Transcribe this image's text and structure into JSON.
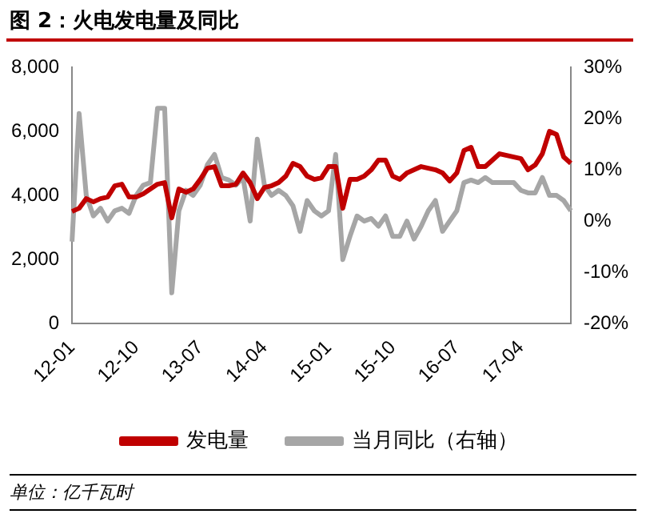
{
  "chart_data": {
    "type": "line",
    "title": "图 2：火电发电量及同比",
    "categories": [
      "12-01",
      null,
      null,
      null,
      null,
      null,
      null,
      null,
      null,
      "12-10",
      null,
      null,
      null,
      null,
      null,
      null,
      null,
      null,
      "13-07",
      null,
      null,
      null,
      null,
      null,
      null,
      null,
      null,
      "14-04",
      null,
      null,
      null,
      null,
      null,
      null,
      null,
      null,
      "15-01",
      null,
      null,
      null,
      null,
      null,
      null,
      null,
      null,
      "15-10",
      null,
      null,
      null,
      null,
      null,
      null,
      null,
      null,
      "16-07",
      null,
      null,
      null,
      null,
      null,
      null,
      null,
      null,
      "17-04",
      null,
      null,
      null,
      null,
      null,
      null,
      null
    ],
    "series": [
      {
        "name": "发电量",
        "color": "#c00000",
        "values": [
          3500,
          3600,
          3900,
          3800,
          3900,
          3950,
          4300,
          4350,
          3950,
          3950,
          4050,
          4200,
          4350,
          4400,
          3300,
          4200,
          4100,
          4200,
          4500,
          4850,
          4900,
          4300,
          4300,
          4350,
          4700,
          4400,
          3900,
          4250,
          4300,
          4400,
          4600,
          5000,
          4900,
          4600,
          4500,
          4550,
          4900,
          4900,
          3600,
          4500,
          4500,
          4600,
          4800,
          5100,
          5100,
          4600,
          4500,
          4700,
          4800,
          4900,
          4850,
          4800,
          4700,
          4450,
          4700,
          5400,
          5500,
          4900,
          4900,
          5100,
          5300,
          5250,
          5200,
          5150,
          4800,
          4950,
          5300,
          6000,
          5900,
          5200,
          5000
        ]
      },
      {
        "name": "当月同比（右轴）",
        "color": "#a6a6a6",
        "axis": "y2",
        "values": [
          -4,
          21,
          5,
          1,
          2.5,
          0,
          2,
          2.5,
          1.5,
          5,
          7,
          7.5,
          22,
          22,
          -14,
          2,
          6,
          5,
          7,
          11,
          13,
          8.5,
          8,
          7,
          8.5,
          0,
          16,
          7,
          5,
          6,
          5,
          3,
          -2,
          4,
          2,
          1,
          2,
          13,
          -7.5,
          -3,
          1,
          0,
          0.5,
          -1,
          1,
          -3,
          -3,
          0,
          -3.5,
          -1,
          2,
          4,
          -2,
          0,
          2,
          7.5,
          8,
          7.5,
          8.5,
          7.5,
          7.5,
          7.5,
          7.5,
          6,
          5.5,
          5.5,
          8.5,
          5,
          5,
          4,
          2
        ]
      }
    ],
    "ylim": [
      0,
      8000
    ],
    "yticks": [
      0,
      {
        "value": 2000,
        "label": "2,000"
      },
      {
        "value": 4000,
        "label": "4,000"
      },
      {
        "value": 6000,
        "label": "6,000"
      },
      {
        "value": 8000,
        "label": "8,000"
      }
    ],
    "y2lim": [
      -20,
      30
    ],
    "y2ticks": [
      {
        "value": -20,
        "label": "-20%"
      },
      {
        "value": -10,
        "label": "-10%"
      },
      {
        "value": 0,
        "label": "0%"
      },
      {
        "value": 10,
        "label": "10%"
      },
      {
        "value": 20,
        "label": "20%"
      },
      {
        "value": 30,
        "label": "30%"
      }
    ],
    "grid": false,
    "legend": "bottom",
    "marker": "none",
    "line_style": "solid",
    "annotations": [
      "单位：亿千瓦时"
    ]
  }
}
